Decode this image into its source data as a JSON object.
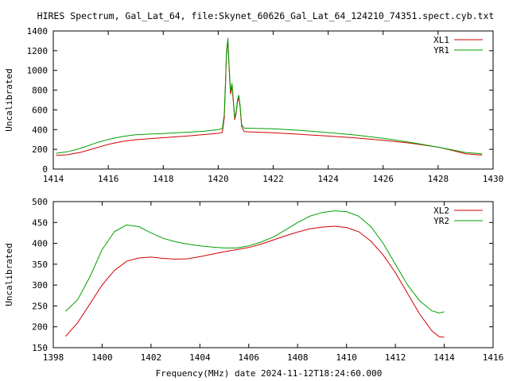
{
  "chart_title": "HIRES Spectrum, Gal_Lat_64, file:Skynet_60626_Gal_Lat_64_124210_74351.spect.cyb.txt",
  "xlabel": "Frequency(MHz) date 2024-11-12T18:24:60.000",
  "chart_data": [
    {
      "type": "line",
      "ylabel": "Uncalibrated",
      "xlim": [
        1414,
        1430
      ],
      "ylim": [
        0,
        1400
      ],
      "xticks": [
        "1414",
        "1416",
        "1418",
        "1420",
        "1422",
        "1424",
        "1426",
        "1428",
        "1430"
      ],
      "yticks": [
        "0",
        "200",
        "400",
        "600",
        "800",
        "1000",
        "1200",
        "1400"
      ],
      "legend_position": "top-right",
      "series": [
        {
          "name": "XL1",
          "color": "#d40000",
          "points": [
            [
              1414.1,
              138
            ],
            [
              1414.5,
              145
            ],
            [
              1415,
              170
            ],
            [
              1415.5,
              210
            ],
            [
              1416,
              250
            ],
            [
              1416.5,
              280
            ],
            [
              1417,
              298
            ],
            [
              1417.5,
              308
            ],
            [
              1418,
              318
            ],
            [
              1418.5,
              328
            ],
            [
              1419,
              338
            ],
            [
              1419.5,
              350
            ],
            [
              1420,
              362
            ],
            [
              1420.15,
              372
            ],
            [
              1420.22,
              520
            ],
            [
              1420.26,
              820
            ],
            [
              1420.3,
              1150
            ],
            [
              1420.35,
              1300
            ],
            [
              1420.4,
              1000
            ],
            [
              1420.45,
              760
            ],
            [
              1420.5,
              840
            ],
            [
              1420.55,
              680
            ],
            [
              1420.6,
              500
            ],
            [
              1420.65,
              560
            ],
            [
              1420.7,
              680
            ],
            [
              1420.75,
              730
            ],
            [
              1420.8,
              620
            ],
            [
              1420.85,
              430
            ],
            [
              1420.95,
              380
            ],
            [
              1421.3,
              375
            ],
            [
              1422,
              368
            ],
            [
              1423,
              352
            ],
            [
              1424,
              335
            ],
            [
              1425,
              315
            ],
            [
              1426,
              292
            ],
            [
              1427,
              262
            ],
            [
              1428,
              222
            ],
            [
              1428.5,
              190
            ],
            [
              1429,
              155
            ],
            [
              1429.6,
              142
            ]
          ]
        },
        {
          "name": "YR1",
          "color": "#00a000",
          "points": [
            [
              1414.1,
              160
            ],
            [
              1414.5,
              175
            ],
            [
              1415,
              210
            ],
            [
              1415.5,
              260
            ],
            [
              1416,
              300
            ],
            [
              1416.5,
              330
            ],
            [
              1417,
              348
            ],
            [
              1417.5,
              355
            ],
            [
              1418,
              360
            ],
            [
              1418.5,
              368
            ],
            [
              1419,
              375
            ],
            [
              1419.5,
              385
            ],
            [
              1420,
              400
            ],
            [
              1420.15,
              410
            ],
            [
              1420.22,
              560
            ],
            [
              1420.26,
              860
            ],
            [
              1420.3,
              1180
            ],
            [
              1420.35,
              1330
            ],
            [
              1420.4,
              1030
            ],
            [
              1420.45,
              790
            ],
            [
              1420.5,
              870
            ],
            [
              1420.55,
              700
            ],
            [
              1420.6,
              520
            ],
            [
              1420.65,
              580
            ],
            [
              1420.7,
              700
            ],
            [
              1420.75,
              750
            ],
            [
              1420.8,
              640
            ],
            [
              1420.85,
              450
            ],
            [
              1420.95,
              415
            ],
            [
              1421.3,
              412
            ],
            [
              1422,
              408
            ],
            [
              1423,
              392
            ],
            [
              1424,
              370
            ],
            [
              1425,
              345
            ],
            [
              1426,
              312
            ],
            [
              1427,
              270
            ],
            [
              1428,
              222
            ],
            [
              1428.5,
              195
            ],
            [
              1429,
              168
            ],
            [
              1429.6,
              155
            ]
          ]
        }
      ]
    },
    {
      "type": "line",
      "ylabel": "Uncalibrated",
      "xlim": [
        1398,
        1416
      ],
      "ylim": [
        150,
        500
      ],
      "xticks": [
        "1398",
        "1400",
        "1402",
        "1404",
        "1406",
        "1408",
        "1410",
        "1412",
        "1414",
        "1416"
      ],
      "yticks": [
        "150",
        "200",
        "250",
        "300",
        "350",
        "400",
        "450",
        "500"
      ],
      "legend_position": "top-right",
      "series": [
        {
          "name": "XL2",
          "color": "#d40000",
          "points": [
            [
              1398.5,
              177
            ],
            [
              1399,
              210
            ],
            [
              1399.5,
              255
            ],
            [
              1400,
              300
            ],
            [
              1400.5,
              335
            ],
            [
              1401,
              357
            ],
            [
              1401.5,
              365
            ],
            [
              1402,
              367
            ],
            [
              1402.5,
              364
            ],
            [
              1403,
              362
            ],
            [
              1403.5,
              363
            ],
            [
              1404,
              368
            ],
            [
              1404.5,
              374
            ],
            [
              1405,
              380
            ],
            [
              1405.5,
              385
            ],
            [
              1406,
              390
            ],
            [
              1406.5,
              398
            ],
            [
              1407,
              408
            ],
            [
              1407.5,
              418
            ],
            [
              1408,
              427
            ],
            [
              1408.5,
              435
            ],
            [
              1409,
              439
            ],
            [
              1409.5,
              441
            ],
            [
              1410,
              438
            ],
            [
              1410.5,
              428
            ],
            [
              1411,
              405
            ],
            [
              1411.5,
              372
            ],
            [
              1412,
              330
            ],
            [
              1412.5,
              280
            ],
            [
              1413,
              230
            ],
            [
              1413.5,
              190
            ],
            [
              1413.8,
              176
            ],
            [
              1414,
              175
            ]
          ]
        },
        {
          "name": "YR2",
          "color": "#00a000",
          "points": [
            [
              1398.5,
              237
            ],
            [
              1399,
              265
            ],
            [
              1399.5,
              320
            ],
            [
              1400,
              385
            ],
            [
              1400.5,
              428
            ],
            [
              1401,
              444
            ],
            [
              1401.5,
              440
            ],
            [
              1402,
              425
            ],
            [
              1402.5,
              412
            ],
            [
              1403,
              404
            ],
            [
              1403.5,
              398
            ],
            [
              1404,
              394
            ],
            [
              1404.5,
              391
            ],
            [
              1405,
              389
            ],
            [
              1405.5,
              389
            ],
            [
              1406,
              394
            ],
            [
              1406.5,
              403
            ],
            [
              1407,
              415
            ],
            [
              1407.5,
              432
            ],
            [
              1408,
              450
            ],
            [
              1408.5,
              465
            ],
            [
              1409,
              474
            ],
            [
              1409.5,
              478
            ],
            [
              1410,
              476
            ],
            [
              1410.5,
              465
            ],
            [
              1411,
              440
            ],
            [
              1411.5,
              400
            ],
            [
              1412,
              350
            ],
            [
              1412.5,
              300
            ],
            [
              1413,
              262
            ],
            [
              1413.5,
              238
            ],
            [
              1413.8,
              233
            ],
            [
              1414,
              236
            ]
          ]
        }
      ]
    }
  ]
}
